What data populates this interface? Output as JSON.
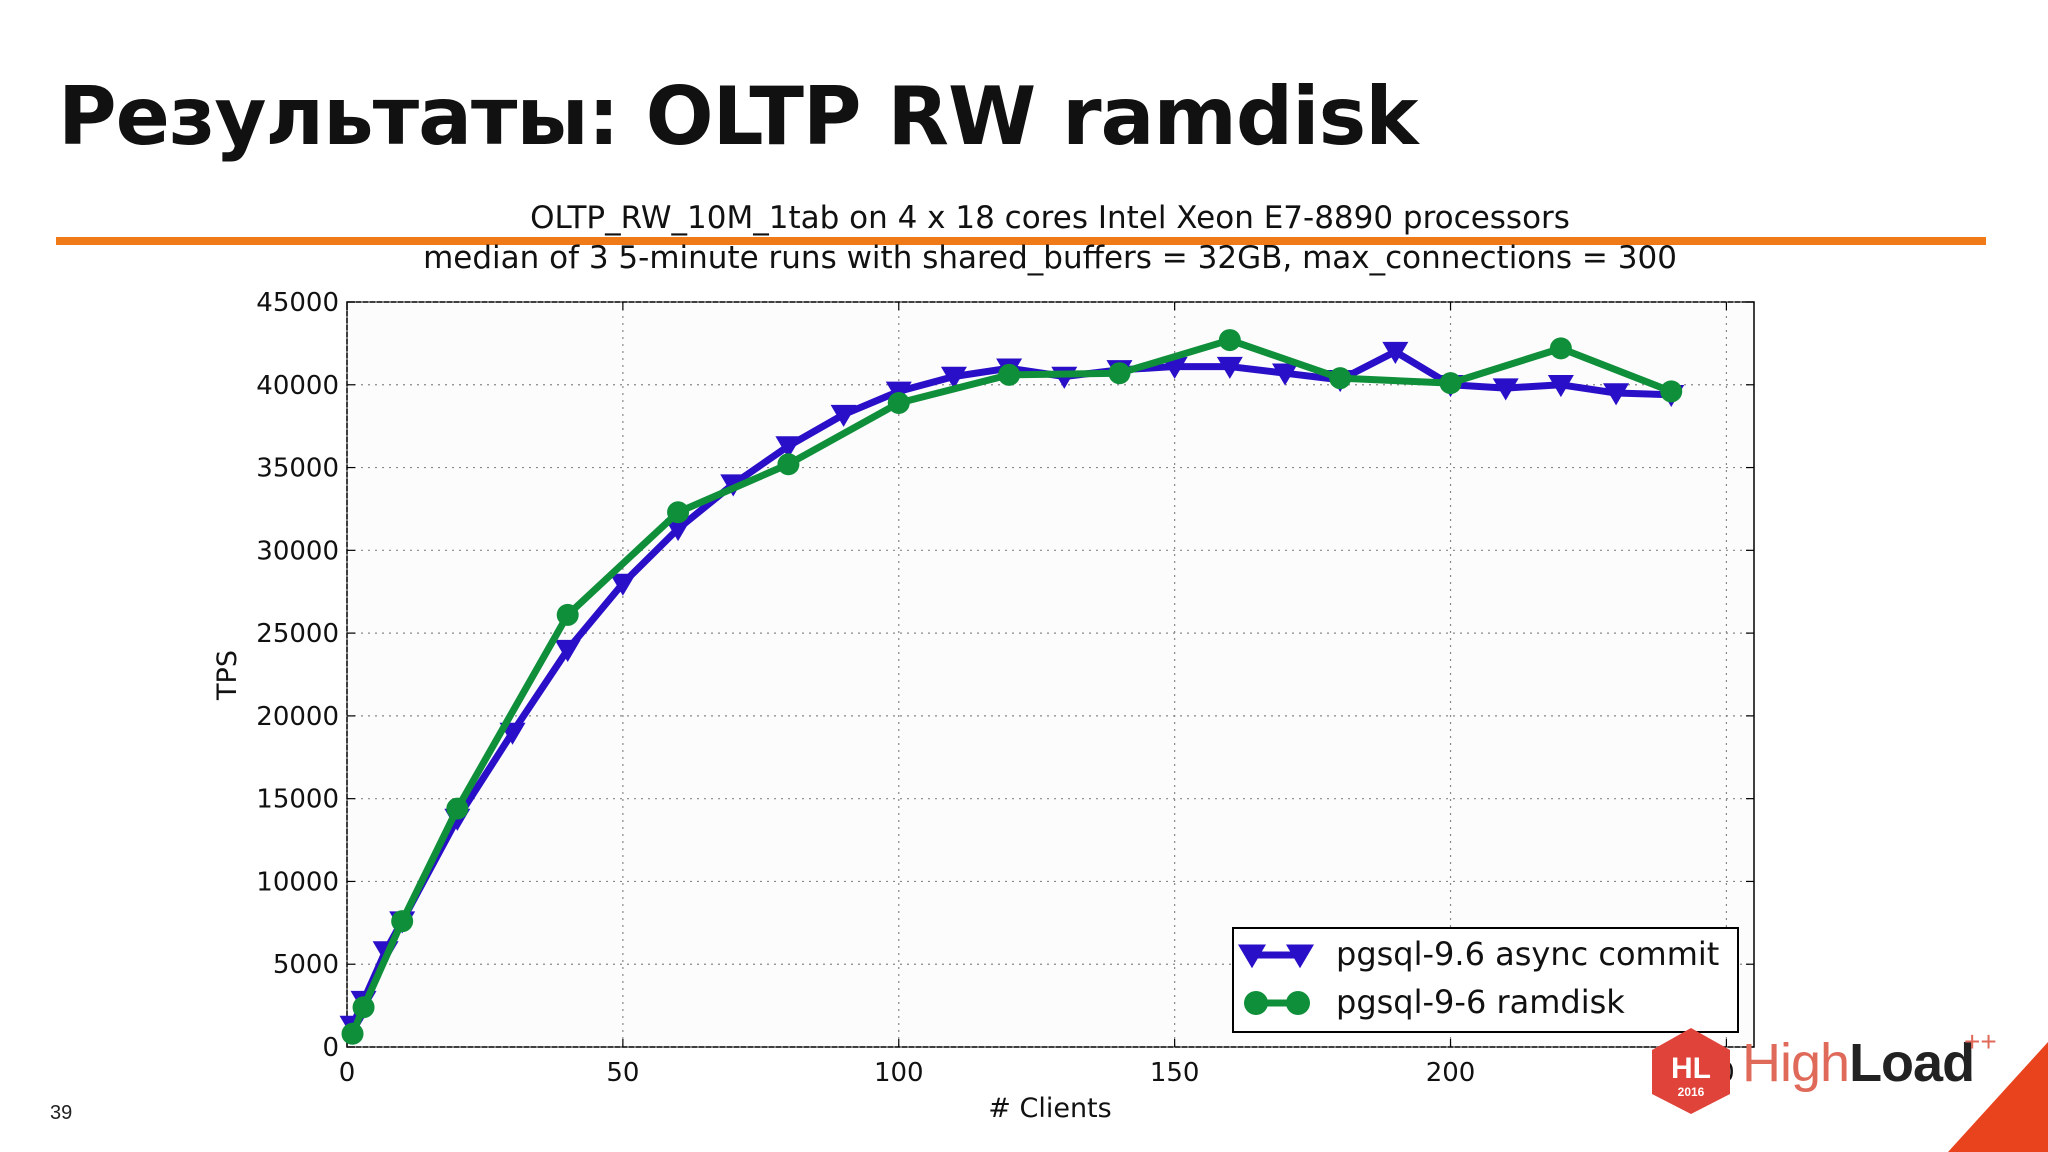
{
  "slide": {
    "title": "Результаты: OLTP RW ramdisk",
    "number": "39"
  },
  "logo": {
    "badge_initials": "HL",
    "badge_year": "2016",
    "name_part1": "High",
    "name_part2": "Load",
    "superscript": "++"
  },
  "colors": {
    "accent": "#f07a17",
    "series1": "#2a0fc8",
    "series2": "#0f8f3a",
    "logo_red": "#e0433a"
  },
  "chart_data": {
    "type": "line",
    "title": "OLTP_RW_10M_1tab on 4 x 18 cores Intel Xeon E7-8890 processors",
    "subtitle": "median of 3 5-minute runs with shared_buffers = 32GB, max_connections = 300",
    "xlabel": "# Clients",
    "ylabel": "TPS",
    "xlim": [
      0,
      255
    ],
    "ylim": [
      0,
      45000
    ],
    "xticks": [
      "0",
      "50",
      "100",
      "150",
      "200",
      "0"
    ],
    "yticks": [
      "0",
      "5000",
      "10000",
      "15000",
      "20000",
      "25000",
      "30000",
      "35000",
      "40000",
      "45000"
    ],
    "grid": true,
    "legend_position": "bottom-right",
    "series": [
      {
        "name": "pgsql-9.6 async commit",
        "marker": "triangle-down",
        "x": [
          1,
          3,
          7,
          10,
          20,
          30,
          40,
          50,
          60,
          70,
          80,
          90,
          100,
          110,
          120,
          130,
          140,
          150,
          160,
          170,
          180,
          190,
          200,
          210,
          220,
          230,
          240
        ],
        "y": [
          1300,
          2800,
          5800,
          7600,
          13800,
          19000,
          24000,
          28000,
          31300,
          34000,
          36300,
          38200,
          39600,
          40500,
          41000,
          40500,
          40900,
          41100,
          41100,
          40700,
          40300,
          42000,
          40000,
          39800,
          40000,
          39500,
          39400
        ]
      },
      {
        "name": "pgsql-9-6 ramdisk",
        "marker": "circle",
        "x": [
          1,
          3,
          10,
          20,
          40,
          60,
          80,
          100,
          120,
          140,
          160,
          180,
          200,
          220,
          240
        ],
        "y": [
          800,
          2400,
          7600,
          14400,
          26100,
          32300,
          35200,
          38900,
          40600,
          40700,
          42700,
          40400,
          40100,
          42200,
          39600
        ]
      }
    ]
  }
}
